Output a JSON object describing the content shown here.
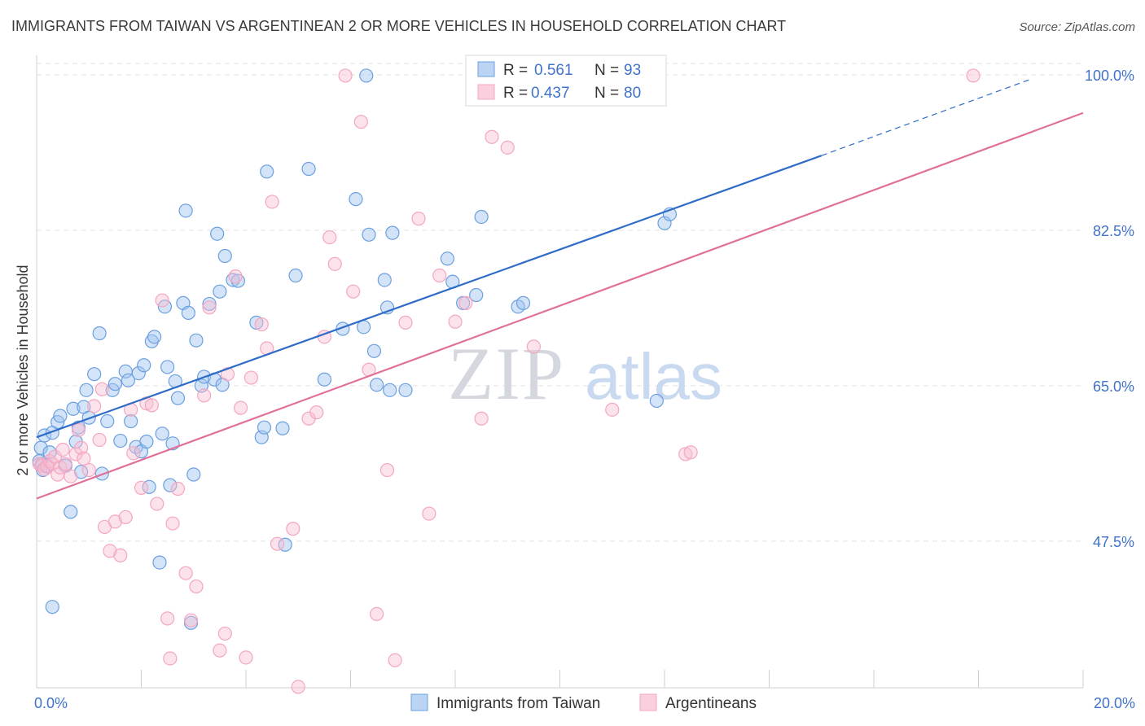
{
  "chart_data": {
    "type": "scatter",
    "title": "IMMIGRANTS FROM TAIWAN VS ARGENTINEAN 2 OR MORE VEHICLES IN HOUSEHOLD CORRELATION CHART",
    "source": "Source: ZipAtlas.com",
    "xlabel": "",
    "ylabel": "2 or more Vehicles in Household",
    "xlim": [
      0,
      20
    ],
    "ylim": [
      31,
      102
    ],
    "x_tick_labels": [
      {
        "value": 0,
        "label": "0.0%"
      },
      {
        "value": 20,
        "label": "20.0%"
      }
    ],
    "y_tick_labels": [
      {
        "value": 100,
        "label": "100.0%"
      },
      {
        "value": 82.5,
        "label": "82.5%"
      },
      {
        "value": 65,
        "label": "65.0%"
      },
      {
        "value": 47.5,
        "label": "47.5%"
      }
    ],
    "grid": true,
    "legend_position": "top-center",
    "watermark": "ZIPatlas",
    "series": [
      {
        "name": "Immigrants from Taiwan",
        "color": "#6b9fe0",
        "line_color": "#2f6cc8",
        "R": "0.561",
        "N": "93",
        "trend": {
          "x0": 0,
          "y0": 59.2,
          "x1": 15.0,
          "y1": 90.9,
          "dash_x1": 19.0,
          "dash_y1": 99.5
        },
        "points": [
          [
            0.1,
            56.2
          ],
          [
            0.15,
            59.4
          ],
          [
            0.2,
            56.0
          ],
          [
            0.3,
            59.7
          ],
          [
            0.4,
            60.9
          ],
          [
            0.45,
            61.6
          ],
          [
            0.55,
            56.0
          ],
          [
            0.65,
            50.8
          ],
          [
            0.7,
            62.4
          ],
          [
            0.75,
            58.7
          ],
          [
            0.8,
            60.3
          ],
          [
            0.85,
            55.3
          ],
          [
            0.9,
            62.6
          ],
          [
            0.95,
            64.5
          ],
          [
            1.0,
            61.4
          ],
          [
            1.1,
            66.3
          ],
          [
            1.2,
            70.9
          ],
          [
            1.25,
            55.1
          ],
          [
            1.35,
            61.0
          ],
          [
            1.45,
            64.5
          ],
          [
            1.5,
            65.2
          ],
          [
            1.6,
            58.8
          ],
          [
            1.7,
            66.6
          ],
          [
            1.75,
            65.6
          ],
          [
            1.8,
            61.0
          ],
          [
            1.9,
            58.1
          ],
          [
            1.95,
            66.4
          ],
          [
            2.0,
            57.6
          ],
          [
            2.05,
            67.3
          ],
          [
            2.1,
            58.7
          ],
          [
            2.15,
            53.6
          ],
          [
            2.2,
            70.0
          ],
          [
            2.25,
            70.5
          ],
          [
            2.35,
            45.1
          ],
          [
            2.4,
            59.6
          ],
          [
            2.45,
            73.9
          ],
          [
            2.5,
            67.1
          ],
          [
            2.55,
            53.8
          ],
          [
            2.6,
            58.5
          ],
          [
            2.65,
            65.5
          ],
          [
            2.7,
            63.6
          ],
          [
            2.8,
            74.3
          ],
          [
            2.85,
            84.7
          ],
          [
            2.9,
            73.2
          ],
          [
            2.95,
            38.3
          ],
          [
            3.0,
            55.0
          ],
          [
            3.05,
            70.1
          ],
          [
            3.15,
            65.0
          ],
          [
            3.2,
            66.0
          ],
          [
            3.3,
            74.2
          ],
          [
            3.4,
            65.7
          ],
          [
            3.45,
            82.1
          ],
          [
            3.5,
            75.6
          ],
          [
            3.55,
            65.1
          ],
          [
            3.6,
            79.6
          ],
          [
            3.75,
            76.9
          ],
          [
            3.85,
            76.8
          ],
          [
            4.2,
            72.1
          ],
          [
            4.3,
            59.2
          ],
          [
            4.35,
            60.3
          ],
          [
            4.4,
            89.1
          ],
          [
            4.7,
            60.2
          ],
          [
            4.75,
            47.1
          ],
          [
            4.95,
            77.4
          ],
          [
            5.2,
            89.4
          ],
          [
            5.5,
            65.7
          ],
          [
            5.85,
            71.4
          ],
          [
            6.1,
            86.0
          ],
          [
            6.25,
            71.6
          ],
          [
            6.3,
            99.9
          ],
          [
            6.35,
            82.0
          ],
          [
            6.45,
            68.9
          ],
          [
            6.5,
            65.1
          ],
          [
            6.65,
            76.9
          ],
          [
            6.7,
            73.8
          ],
          [
            6.75,
            64.5
          ],
          [
            6.8,
            82.2
          ],
          [
            7.05,
            64.5
          ],
          [
            7.85,
            79.3
          ],
          [
            7.95,
            76.7
          ],
          [
            8.15,
            74.3
          ],
          [
            8.4,
            75.2
          ],
          [
            8.5,
            84.0
          ],
          [
            9.2,
            73.9
          ],
          [
            9.3,
            74.3
          ],
          [
            11.85,
            63.3
          ],
          [
            12.0,
            83.3
          ],
          [
            12.1,
            84.3
          ],
          [
            0.05,
            56.5
          ],
          [
            0.08,
            58.0
          ],
          [
            0.12,
            55.5
          ],
          [
            0.25,
            57.5
          ],
          [
            0.3,
            40.1
          ]
        ]
      },
      {
        "name": "Argentineans",
        "color": "#f4a6c0",
        "line_color": "#e0709a",
        "R": "0.437",
        "N": "80",
        "trend": {
          "x0": 0,
          "y0": 52.3,
          "x1": 20.0,
          "y1": 95.7
        },
        "points": [
          [
            0.05,
            56.2
          ],
          [
            0.1,
            56.0
          ],
          [
            0.15,
            55.6
          ],
          [
            0.2,
            55.9
          ],
          [
            0.25,
            56.5
          ],
          [
            0.3,
            56.2
          ],
          [
            0.35,
            57.0
          ],
          [
            0.4,
            55.0
          ],
          [
            0.45,
            55.8
          ],
          [
            0.5,
            57.8
          ],
          [
            0.55,
            56.2
          ],
          [
            0.65,
            54.8
          ],
          [
            0.75,
            57.3
          ],
          [
            0.8,
            60.0
          ],
          [
            0.85,
            58.0
          ],
          [
            0.9,
            56.8
          ],
          [
            1.0,
            55.5
          ],
          [
            1.1,
            62.7
          ],
          [
            1.2,
            58.9
          ],
          [
            1.25,
            64.6
          ],
          [
            1.3,
            49.1
          ],
          [
            1.4,
            46.4
          ],
          [
            1.5,
            49.7
          ],
          [
            1.6,
            45.9
          ],
          [
            1.7,
            50.2
          ],
          [
            1.8,
            62.3
          ],
          [
            1.85,
            57.4
          ],
          [
            2.0,
            53.5
          ],
          [
            2.1,
            63.0
          ],
          [
            2.2,
            62.8
          ],
          [
            2.3,
            51.7
          ],
          [
            2.4,
            74.6
          ],
          [
            2.5,
            38.8
          ],
          [
            2.55,
            34.3
          ],
          [
            2.6,
            49.5
          ],
          [
            2.7,
            53.4
          ],
          [
            2.85,
            43.9
          ],
          [
            2.95,
            38.6
          ],
          [
            3.05,
            42.4
          ],
          [
            3.2,
            63.9
          ],
          [
            3.3,
            73.8
          ],
          [
            3.5,
            35.2
          ],
          [
            3.6,
            37.1
          ],
          [
            3.65,
            66.3
          ],
          [
            3.8,
            77.3
          ],
          [
            3.9,
            62.5
          ],
          [
            4.0,
            34.4
          ],
          [
            4.1,
            65.9
          ],
          [
            4.3,
            71.9
          ],
          [
            4.4,
            69.2
          ],
          [
            4.5,
            85.7
          ],
          [
            4.6,
            47.2
          ],
          [
            4.9,
            48.9
          ],
          [
            5.0,
            31.1
          ],
          [
            5.2,
            61.3
          ],
          [
            5.35,
            62.0
          ],
          [
            5.5,
            70.5
          ],
          [
            5.6,
            81.7
          ],
          [
            5.7,
            78.7
          ],
          [
            5.9,
            99.9
          ],
          [
            6.05,
            75.6
          ],
          [
            6.2,
            94.7
          ],
          [
            6.35,
            66.8
          ],
          [
            6.5,
            39.3
          ],
          [
            6.7,
            55.5
          ],
          [
            6.85,
            34.1
          ],
          [
            7.05,
            72.1
          ],
          [
            7.3,
            83.8
          ],
          [
            7.5,
            50.6
          ],
          [
            7.7,
            77.4
          ],
          [
            8.0,
            72.2
          ],
          [
            8.2,
            74.3
          ],
          [
            8.5,
            61.3
          ],
          [
            8.7,
            93.0
          ],
          [
            9.0,
            91.8
          ],
          [
            9.5,
            69.4
          ],
          [
            11.0,
            62.3
          ],
          [
            12.4,
            57.3
          ],
          [
            12.5,
            57.5
          ],
          [
            17.9,
            99.9
          ]
        ]
      }
    ]
  }
}
